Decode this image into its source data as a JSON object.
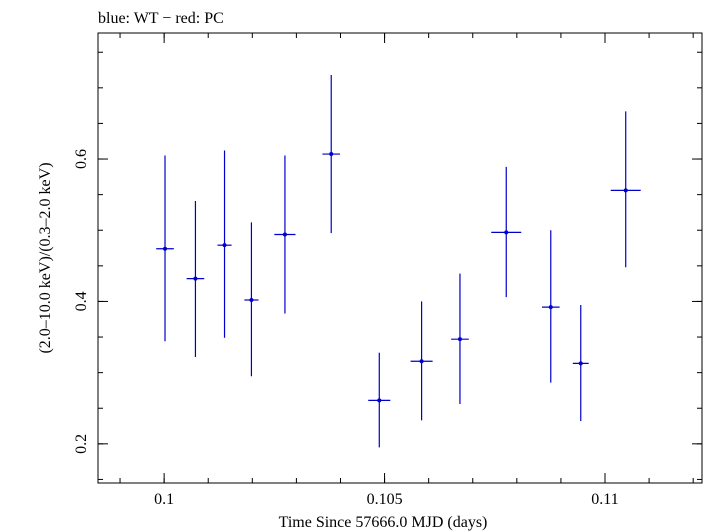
{
  "chart_data": {
    "type": "scatter",
    "title": "blue: WT − red: PC",
    "xlabel": "Time Since 57666.0 MJD (days)",
    "ylabel": "(2.0–10.0 keV)/(0.3–2.0 keV)",
    "xlim": [
      0.0985,
      0.1122
    ],
    "ylim": [
      0.145,
      0.777
    ],
    "x_ticks": [
      {
        "value": 0.1,
        "label": "0.1"
      },
      {
        "value": 0.105,
        "label": "0.105"
      },
      {
        "value": 0.11,
        "label": "0.11"
      }
    ],
    "y_ticks": [
      {
        "value": 0.2,
        "label": "0.2"
      },
      {
        "value": 0.4,
        "label": "0.4"
      },
      {
        "value": 0.6,
        "label": "0.6"
      }
    ],
    "x_minor_step": 0.001,
    "y_minor_step": 0.05,
    "grid": false,
    "series": [
      {
        "color": "#0000cc",
        "points": [
          {
            "x": 0.10002,
            "xerr": 0.0002,
            "y": 0.474,
            "ylo": 0.344,
            "yhi": 0.605
          },
          {
            "x": 0.10071,
            "xerr": 0.0002,
            "y": 0.432,
            "ylo": 0.322,
            "yhi": 0.541
          },
          {
            "x": 0.10137,
            "xerr": 0.00016,
            "y": 0.479,
            "ylo": 0.349,
            "yhi": 0.612
          },
          {
            "x": 0.10198,
            "xerr": 0.00016,
            "y": 0.402,
            "ylo": 0.295,
            "yhi": 0.511
          },
          {
            "x": 0.10274,
            "xerr": 0.00024,
            "y": 0.494,
            "ylo": 0.383,
            "yhi": 0.605
          },
          {
            "x": 0.10379,
            "xerr": 0.0002,
            "y": 0.607,
            "ylo": 0.496,
            "yhi": 0.718
          },
          {
            "x": 0.10488,
            "xerr": 0.00025,
            "y": 0.261,
            "ylo": 0.195,
            "yhi": 0.328
          },
          {
            "x": 0.10584,
            "xerr": 0.00025,
            "y": 0.316,
            "ylo": 0.233,
            "yhi": 0.4
          },
          {
            "x": 0.10671,
            "xerr": 0.0002,
            "y": 0.347,
            "ylo": 0.256,
            "yhi": 0.439
          },
          {
            "x": 0.10776,
            "xerr": 0.00034,
            "y": 0.497,
            "ylo": 0.406,
            "yhi": 0.589
          },
          {
            "x": 0.10877,
            "xerr": 0.0002,
            "y": 0.392,
            "ylo": 0.286,
            "yhi": 0.5
          },
          {
            "x": 0.10945,
            "xerr": 0.00018,
            "y": 0.313,
            "ylo": 0.232,
            "yhi": 0.395
          },
          {
            "x": 0.11047,
            "xerr": 0.00034,
            "y": 0.556,
            "ylo": 0.448,
            "yhi": 0.667
          }
        ]
      }
    ]
  }
}
